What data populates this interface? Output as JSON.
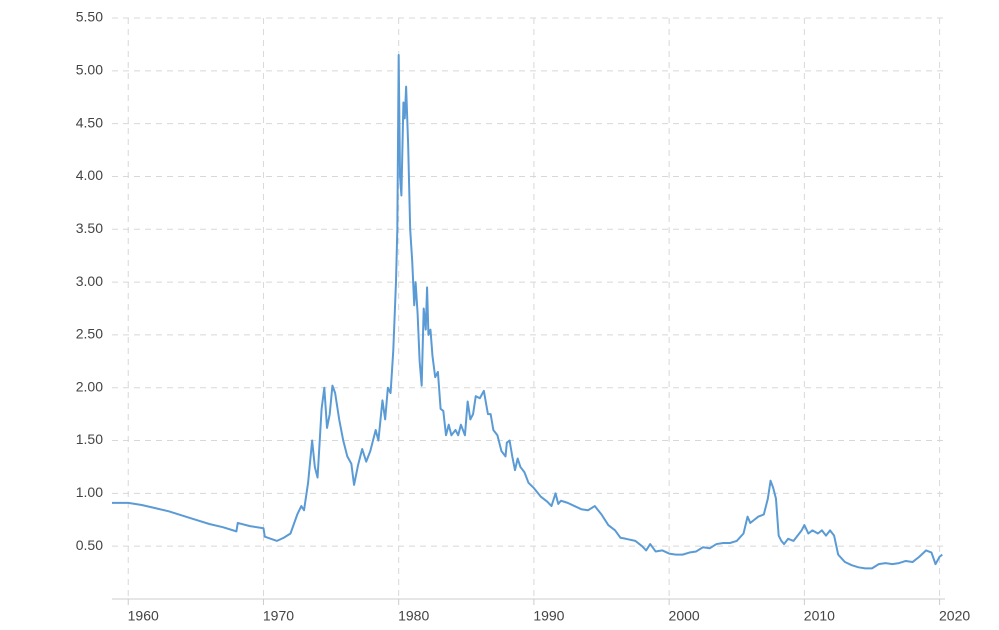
{
  "chart_data": {
    "type": "line",
    "x": [
      1958.8,
      1960,
      1961,
      1962,
      1963,
      1964,
      1965,
      1966,
      1967,
      1968,
      1968.1,
      1969,
      1970,
      1970.1,
      1971,
      1971.5,
      1972,
      1972.5,
      1972.8,
      1973,
      1973.3,
      1973.6,
      1973.8,
      1974,
      1974.3,
      1974.5,
      1974.7,
      1974.9,
      1975.1,
      1975.3,
      1975.6,
      1975.9,
      1976.2,
      1976.5,
      1976.7,
      1977,
      1977.3,
      1977.6,
      1977.9,
      1978.3,
      1978.5,
      1978.8,
      1979,
      1979.2,
      1979.4,
      1979.6,
      1979.8,
      1979.9,
      1980,
      1980.1,
      1980.2,
      1980.35,
      1980.45,
      1980.55,
      1980.7,
      1980.85,
      1981,
      1981.15,
      1981.25,
      1981.4,
      1981.55,
      1981.7,
      1981.85,
      1982,
      1982.1,
      1982.2,
      1982.35,
      1982.5,
      1982.7,
      1982.9,
      1983.1,
      1983.3,
      1983.5,
      1983.7,
      1983.9,
      1984.2,
      1984.4,
      1984.6,
      1984.9,
      1985.1,
      1985.3,
      1985.5,
      1985.7,
      1986,
      1986.3,
      1986.6,
      1986.8,
      1987,
      1987.3,
      1987.6,
      1987.9,
      1988,
      1988.2,
      1988.4,
      1988.6,
      1988.8,
      1989,
      1989.3,
      1989.6,
      1990,
      1990.5,
      1991,
      1991.3,
      1991.6,
      1991.8,
      1992,
      1992.5,
      1993,
      1993.5,
      1994,
      1994.5,
      1995,
      1995.5,
      1996,
      1996.4,
      1996.8,
      1997.5,
      1998,
      1998.3,
      1998.6,
      1999,
      1999.5,
      2000,
      2000.5,
      2001,
      2001.5,
      2002,
      2002.5,
      2003,
      2003.5,
      2004,
      2004.5,
      2005,
      2005.5,
      2005.8,
      2006,
      2006.3,
      2006.6,
      2007,
      2007.3,
      2007.5,
      2007.7,
      2007.9,
      2008.1,
      2008.3,
      2008.5,
      2008.8,
      2009.2,
      2009.5,
      2009.8,
      2010,
      2010.3,
      2010.6,
      2011,
      2011.3,
      2011.6,
      2011.9,
      2012.2,
      2012.5,
      2013,
      2013.5,
      2014,
      2014.5,
      2015,
      2015.5,
      2016,
      2016.5,
      2017,
      2017.5,
      2018,
      2018.5,
      2019,
      2019.4,
      2019.7,
      2020,
      2020.2
    ],
    "series": [
      {
        "color": "#5b9bd5",
        "values": [
          0.91,
          0.91,
          0.89,
          0.86,
          0.83,
          0.79,
          0.75,
          0.71,
          0.68,
          0.64,
          0.72,
          0.69,
          0.67,
          0.59,
          0.55,
          0.58,
          0.62,
          0.8,
          0.88,
          0.84,
          1.1,
          1.5,
          1.25,
          1.15,
          1.8,
          2.0,
          1.62,
          1.75,
          2.02,
          1.95,
          1.7,
          1.5,
          1.35,
          1.28,
          1.08,
          1.27,
          1.42,
          1.3,
          1.4,
          1.6,
          1.5,
          1.88,
          1.7,
          2.0,
          1.95,
          2.35,
          3.0,
          3.5,
          5.15,
          4.0,
          3.82,
          4.7,
          4.55,
          4.85,
          4.3,
          3.5,
          3.2,
          2.78,
          3.0,
          2.7,
          2.25,
          2.02,
          2.75,
          2.55,
          2.95,
          2.5,
          2.55,
          2.3,
          2.1,
          2.15,
          1.8,
          1.78,
          1.55,
          1.65,
          1.55,
          1.6,
          1.55,
          1.65,
          1.55,
          1.87,
          1.7,
          1.75,
          1.92,
          1.9,
          1.97,
          1.75,
          1.75,
          1.6,
          1.55,
          1.4,
          1.35,
          1.48,
          1.5,
          1.35,
          1.22,
          1.33,
          1.25,
          1.2,
          1.1,
          1.05,
          0.97,
          0.92,
          0.88,
          1.0,
          0.9,
          0.93,
          0.91,
          0.88,
          0.85,
          0.84,
          0.88,
          0.8,
          0.7,
          0.65,
          0.58,
          0.57,
          0.55,
          0.5,
          0.46,
          0.52,
          0.45,
          0.46,
          0.43,
          0.42,
          0.42,
          0.44,
          0.45,
          0.49,
          0.48,
          0.52,
          0.53,
          0.53,
          0.55,
          0.62,
          0.78,
          0.72,
          0.75,
          0.78,
          0.8,
          0.95,
          1.12,
          1.05,
          0.95,
          0.6,
          0.55,
          0.52,
          0.57,
          0.55,
          0.6,
          0.65,
          0.7,
          0.62,
          0.65,
          0.62,
          0.65,
          0.6,
          0.65,
          0.6,
          0.42,
          0.35,
          0.32,
          0.3,
          0.29,
          0.29,
          0.33,
          0.34,
          0.33,
          0.34,
          0.36,
          0.35,
          0.4,
          0.46,
          0.44,
          0.33,
          0.4,
          0.42
        ]
      }
    ],
    "xlim": [
      1958.8,
      2020.4
    ],
    "xticks": [
      1960,
      1970,
      1980,
      1990,
      2000,
      2010,
      2020
    ],
    "ylim": [
      0,
      5.5
    ],
    "yticks": [
      {
        "value": 0.5,
        "label": "0.50"
      },
      {
        "value": 1,
        "label": "1.00"
      },
      {
        "value": 1.5,
        "label": "1.50"
      },
      {
        "value": 2,
        "label": "2.00"
      },
      {
        "value": 2.5,
        "label": "2.50"
      },
      {
        "value": 3,
        "label": "3.00"
      },
      {
        "value": 3.5,
        "label": "3.50"
      },
      {
        "value": 4,
        "label": "4.00"
      },
      {
        "value": 4.5,
        "label": "4.50"
      },
      {
        "value": 5,
        "label": "5.00"
      },
      {
        "value": 5.5,
        "label": "5.50"
      }
    ],
    "grid": true
  }
}
